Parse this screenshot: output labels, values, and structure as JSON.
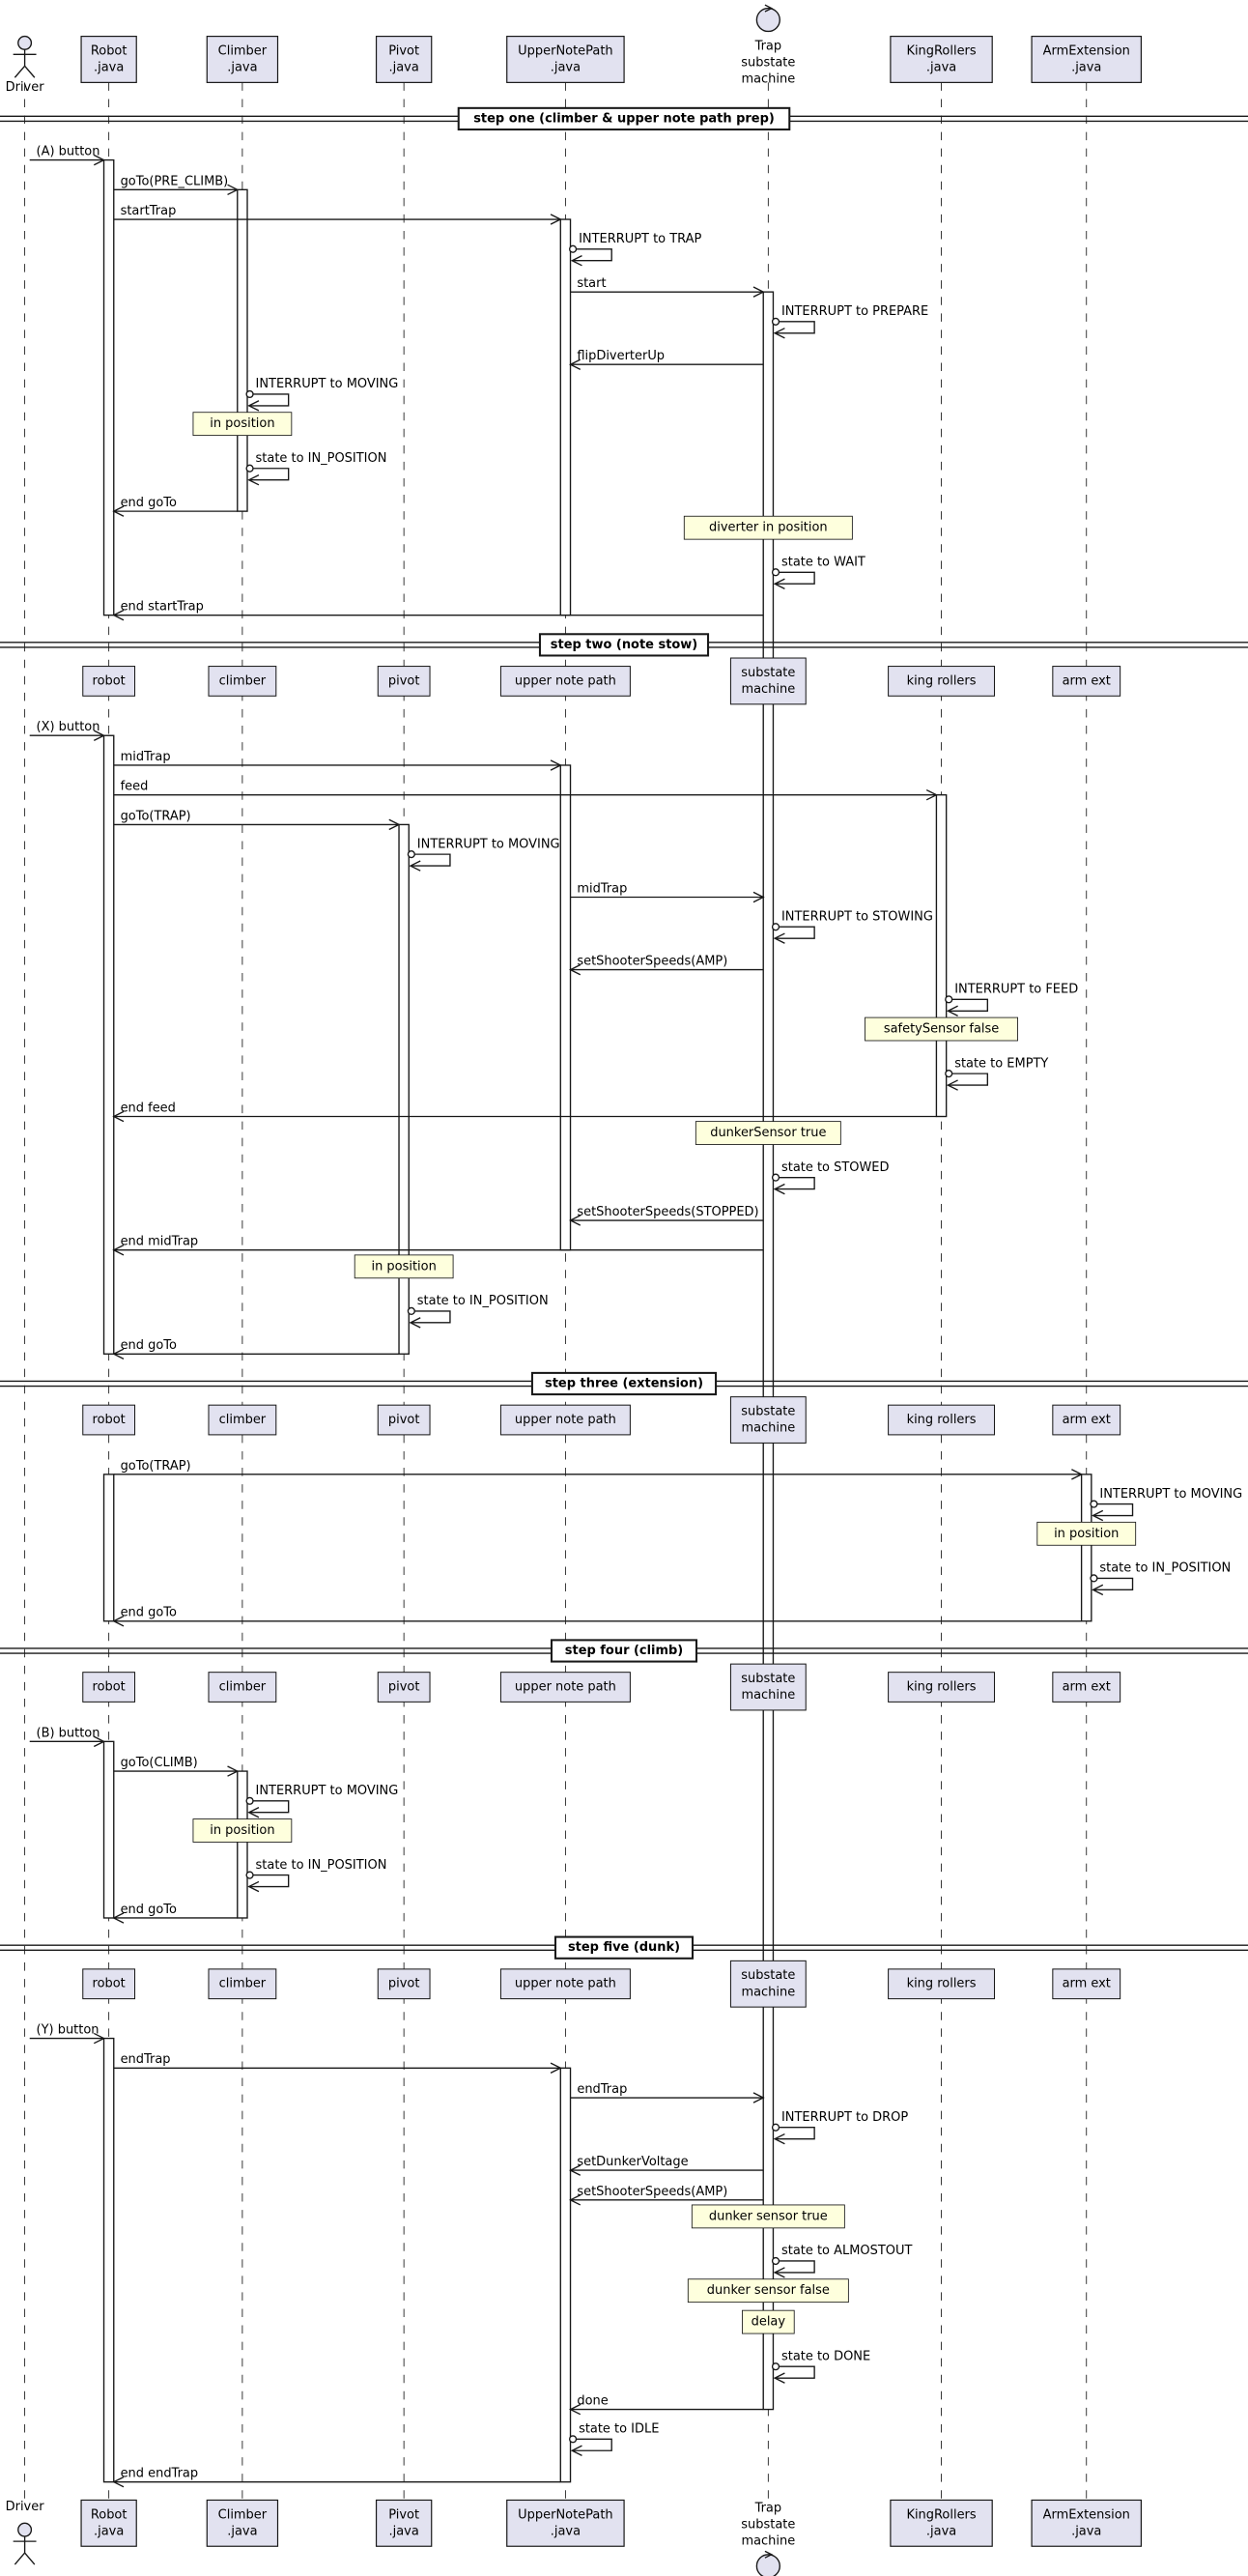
{
  "participants": [
    {
      "kind": "actor",
      "lines": [
        "Driver"
      ]
    },
    {
      "kind": "box",
      "lines": [
        "Robot",
        ".java"
      ]
    },
    {
      "kind": "box",
      "lines": [
        "Climber",
        ".java"
      ]
    },
    {
      "kind": "box",
      "lines": [
        "Pivot",
        ".java"
      ]
    },
    {
      "kind": "box",
      "lines": [
        "UpperNotePath",
        ".java"
      ]
    },
    {
      "kind": "control",
      "lines": [
        "Trap",
        "substate",
        "machine"
      ]
    },
    {
      "kind": "box",
      "lines": [
        "KingRollers",
        ".java"
      ]
    },
    {
      "kind": "box",
      "lines": [
        "ArmExtension",
        ".java"
      ]
    }
  ],
  "sections": [
    {
      "title": "step one (climber & upper note path prep)",
      "events": [
        {
          "type": "message",
          "from": 0,
          "to": 1,
          "label": "(A) button"
        },
        {
          "type": "message",
          "from": 1,
          "to": 2,
          "label": "goTo(PRE_CLIMB)"
        },
        {
          "type": "message",
          "from": 1,
          "to": 4,
          "label": "startTrap"
        },
        {
          "type": "self",
          "at": 4,
          "label": "INTERRUPT to TRAP"
        },
        {
          "type": "message",
          "from": 4,
          "to": 5,
          "label": "start"
        },
        {
          "type": "self",
          "at": 5,
          "label": "INTERRUPT to PREPARE"
        },
        {
          "type": "message",
          "from": 5,
          "to": 4,
          "label": "flipDiverterUp"
        },
        {
          "type": "self",
          "at": 2,
          "label": "INTERRUPT to MOVING"
        },
        {
          "type": "note",
          "at": 2,
          "label": "in position"
        },
        {
          "type": "self",
          "at": 2,
          "label": "state to IN_POSITION"
        },
        {
          "type": "message",
          "from": 2,
          "to": 1,
          "label": "end goTo"
        },
        {
          "type": "note",
          "at": 5,
          "label": "diverter in position"
        },
        {
          "type": "self",
          "at": 5,
          "label": "state to WAIT"
        },
        {
          "type": "message",
          "from": 5,
          "to": 1,
          "label": "end startTrap"
        }
      ]
    },
    {
      "title": "step two (note stow)",
      "header": [
        [
          "robot"
        ],
        [
          "climber"
        ],
        [
          "pivot"
        ],
        [
          "upper note path"
        ],
        [
          "substate",
          "machine"
        ],
        [
          "king rollers"
        ],
        [
          "arm ext"
        ]
      ],
      "events": [
        {
          "type": "message",
          "from": 0,
          "to": 1,
          "label": "(X) button"
        },
        {
          "type": "message",
          "from": 1,
          "to": 4,
          "label": "midTrap"
        },
        {
          "type": "message",
          "from": 1,
          "to": 6,
          "label": "feed"
        },
        {
          "type": "message",
          "from": 1,
          "to": 3,
          "label": "goTo(TRAP)"
        },
        {
          "type": "self",
          "at": 3,
          "label": "INTERRUPT to MOVING"
        },
        {
          "type": "message",
          "from": 4,
          "to": 5,
          "label": "midTrap"
        },
        {
          "type": "self",
          "at": 5,
          "label": "INTERRUPT to STOWING"
        },
        {
          "type": "message",
          "from": 5,
          "to": 4,
          "label": "setShooterSpeeds(AMP)"
        },
        {
          "type": "self",
          "at": 6,
          "label": "INTERRUPT to FEED"
        },
        {
          "type": "note",
          "at": 6,
          "label": "safetySensor false"
        },
        {
          "type": "self",
          "at": 6,
          "label": "state to EMPTY"
        },
        {
          "type": "message",
          "from": 6,
          "to": 1,
          "label": "end feed"
        },
        {
          "type": "note",
          "at": 5,
          "label": "dunkerSensor true"
        },
        {
          "type": "self",
          "at": 5,
          "label": "state to STOWED"
        },
        {
          "type": "message",
          "from": 5,
          "to": 4,
          "label": "setShooterSpeeds(STOPPED)"
        },
        {
          "type": "message",
          "from": 5,
          "to": 1,
          "label": "end midTrap"
        },
        {
          "type": "note",
          "at": 3,
          "label": "in position"
        },
        {
          "type": "self",
          "at": 3,
          "label": "state to IN_POSITION"
        },
        {
          "type": "message",
          "from": 3,
          "to": 1,
          "label": "end goTo"
        }
      ]
    },
    {
      "title": "step three (extension)",
      "header": [
        [
          "robot"
        ],
        [
          "climber"
        ],
        [
          "pivot"
        ],
        [
          "upper note path"
        ],
        [
          "substate",
          "machine"
        ],
        [
          "king rollers"
        ],
        [
          "arm ext"
        ]
      ],
      "events": [
        {
          "type": "message",
          "from": 1,
          "to": 7,
          "label": "goTo(TRAP)"
        },
        {
          "type": "self",
          "at": 7,
          "label": "INTERRUPT to MOVING"
        },
        {
          "type": "note",
          "at": 7,
          "label": "in position"
        },
        {
          "type": "self",
          "at": 7,
          "label": "state to IN_POSITION"
        },
        {
          "type": "message",
          "from": 7,
          "to": 1,
          "label": "end goTo"
        }
      ]
    },
    {
      "title": "step four (climb)",
      "header": [
        [
          "robot"
        ],
        [
          "climber"
        ],
        [
          "pivot"
        ],
        [
          "upper note path"
        ],
        [
          "substate",
          "machine"
        ],
        [
          "king rollers"
        ],
        [
          "arm ext"
        ]
      ],
      "events": [
        {
          "type": "message",
          "from": 0,
          "to": 1,
          "label": "(B) button"
        },
        {
          "type": "message",
          "from": 1,
          "to": 2,
          "label": "goTo(CLIMB)"
        },
        {
          "type": "self",
          "at": 2,
          "label": "INTERRUPT to MOVING"
        },
        {
          "type": "note",
          "at": 2,
          "label": "in position"
        },
        {
          "type": "self",
          "at": 2,
          "label": "state to IN_POSITION"
        },
        {
          "type": "message",
          "from": 2,
          "to": 1,
          "label": "end goTo"
        }
      ]
    },
    {
      "title": "step five (dunk)",
      "header": [
        [
          "robot"
        ],
        [
          "climber"
        ],
        [
          "pivot"
        ],
        [
          "upper note path"
        ],
        [
          "substate",
          "machine"
        ],
        [
          "king rollers"
        ],
        [
          "arm ext"
        ]
      ],
      "events": [
        {
          "type": "message",
          "from": 0,
          "to": 1,
          "label": "(Y) button"
        },
        {
          "type": "message",
          "from": 1,
          "to": 4,
          "label": "endTrap"
        },
        {
          "type": "message",
          "from": 4,
          "to": 5,
          "label": "endTrap"
        },
        {
          "type": "self",
          "at": 5,
          "label": "INTERRUPT to DROP"
        },
        {
          "type": "message",
          "from": 5,
          "to": 4,
          "label": "setDunkerVoltage"
        },
        {
          "type": "message",
          "from": 5,
          "to": 4,
          "label": "setShooterSpeeds(AMP)"
        },
        {
          "type": "note",
          "at": 5,
          "label": "dunker sensor true"
        },
        {
          "type": "self",
          "at": 5,
          "label": "state to ALMOSTOUT"
        },
        {
          "type": "note",
          "at": 5,
          "label": "dunker sensor false"
        },
        {
          "type": "note",
          "at": 5,
          "label": "delay"
        },
        {
          "type": "self",
          "at": 5,
          "label": "state to DONE"
        },
        {
          "type": "message",
          "from": 5,
          "to": 4,
          "label": "done"
        },
        {
          "type": "self",
          "at": 4,
          "label": "state to IDLE"
        },
        {
          "type": "message",
          "from": 4,
          "to": 1,
          "label": "end endTrap"
        }
      ]
    }
  ]
}
